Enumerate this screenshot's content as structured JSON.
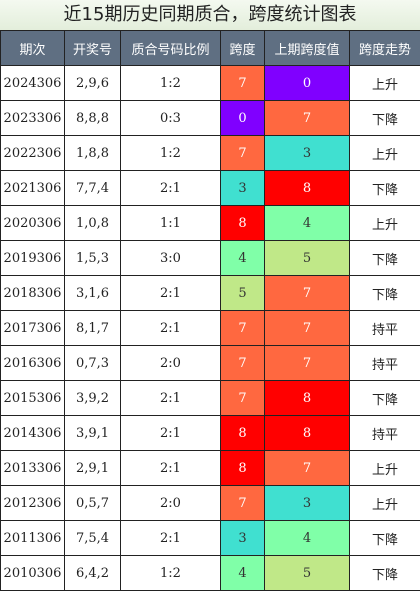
{
  "title": "近15期历史同期质合，跨度统计图表",
  "headers": [
    "期次",
    "开奖号",
    "质合号码比例",
    "跨度",
    "上期跨度值",
    "跨度走势"
  ],
  "colors": {
    "0": "#8000ff",
    "3": "#40e0d0",
    "4": "#80ffa8",
    "5": "#c0e888",
    "7": "#ff6840",
    "8": "#ff0000"
  },
  "rows": [
    {
      "period": "2024306",
      "numbers": "2,9,6",
      "ratio": "1:2",
      "span": "7",
      "prev_span": "0",
      "trend": "上升"
    },
    {
      "period": "2023306",
      "numbers": "8,8,8",
      "ratio": "0:3",
      "span": "0",
      "prev_span": "7",
      "trend": "下降"
    },
    {
      "period": "2022306",
      "numbers": "1,8,8",
      "ratio": "1:2",
      "span": "7",
      "prev_span": "3",
      "trend": "上升"
    },
    {
      "period": "2021306",
      "numbers": "7,7,4",
      "ratio": "2:1",
      "span": "3",
      "prev_span": "8",
      "trend": "下降"
    },
    {
      "period": "2020306",
      "numbers": "1,0,8",
      "ratio": "1:1",
      "span": "8",
      "prev_span": "4",
      "trend": "上升"
    },
    {
      "period": "2019306",
      "numbers": "1,5,3",
      "ratio": "3:0",
      "span": "4",
      "prev_span": "5",
      "trend": "下降"
    },
    {
      "period": "2018306",
      "numbers": "3,1,6",
      "ratio": "2:1",
      "span": "5",
      "prev_span": "7",
      "trend": "下降"
    },
    {
      "period": "2017306",
      "numbers": "8,1,7",
      "ratio": "2:1",
      "span": "7",
      "prev_span": "7",
      "trend": "持平"
    },
    {
      "period": "2016306",
      "numbers": "0,7,3",
      "ratio": "2:0",
      "span": "7",
      "prev_span": "7",
      "trend": "持平"
    },
    {
      "period": "2015306",
      "numbers": "3,9,2",
      "ratio": "2:1",
      "span": "7",
      "prev_span": "8",
      "trend": "下降"
    },
    {
      "period": "2014306",
      "numbers": "3,9,1",
      "ratio": "2:1",
      "span": "8",
      "prev_span": "8",
      "trend": "持平"
    },
    {
      "period": "2013306",
      "numbers": "2,9,1",
      "ratio": "2:1",
      "span": "8",
      "prev_span": "7",
      "trend": "上升"
    },
    {
      "period": "2012306",
      "numbers": "0,5,7",
      "ratio": "2:0",
      "span": "7",
      "prev_span": "3",
      "trend": "上升"
    },
    {
      "period": "2011306",
      "numbers": "7,5,4",
      "ratio": "2:1",
      "span": "3",
      "prev_span": "4",
      "trend": "下降"
    },
    {
      "period": "2010306",
      "numbers": "6,4,2",
      "ratio": "1:2",
      "span": "4",
      "prev_span": "5",
      "trend": "下降"
    }
  ]
}
